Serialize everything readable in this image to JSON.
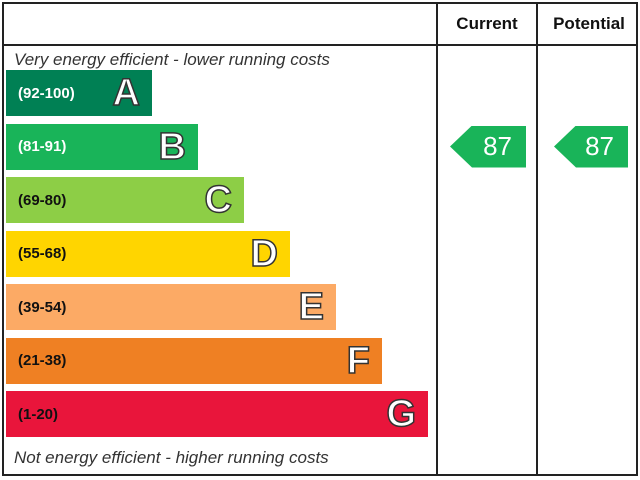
{
  "header": {
    "current_label": "Current",
    "potential_label": "Potential"
  },
  "notes": {
    "top": "Very energy efficient - lower running costs",
    "bottom": "Not energy efficient - higher running costs"
  },
  "chart_data": {
    "type": "bar",
    "categories": [
      "A",
      "B",
      "C",
      "D",
      "E",
      "F",
      "G"
    ],
    "ranges": [
      "(92-100)",
      "(81-91)",
      "(69-80)",
      "(55-68)",
      "(39-54)",
      "(21-38)",
      "(1-20)"
    ],
    "band_colors": [
      "#008054",
      "#19b459",
      "#8dce46",
      "#ffd500",
      "#fcaa65",
      "#ef8023",
      "#e9153b"
    ],
    "range_text_colors": [
      "#ffffff",
      "#ffffff",
      "#111111",
      "#111111",
      "#111111",
      "#111111",
      "#111111"
    ],
    "current": {
      "value": 87,
      "band": "B",
      "color": "#19b459"
    },
    "potential": {
      "value": 87,
      "band": "B",
      "color": "#19b459"
    }
  }
}
